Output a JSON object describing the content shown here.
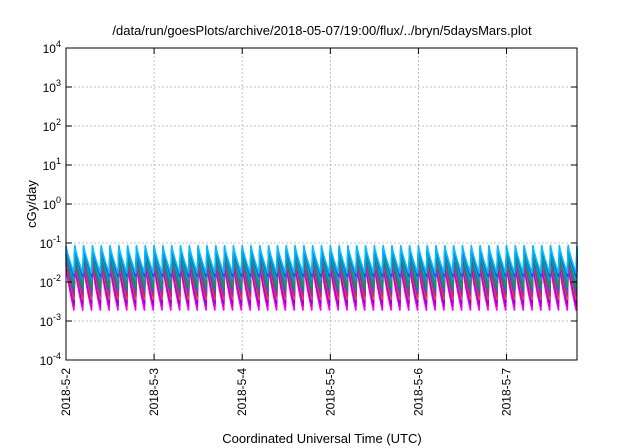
{
  "chart_data": {
    "type": "line",
    "title": "/data/run/goesPlots/archive/2018-05-07/19:00/flux/../bryn/5daysMars.plot",
    "xlabel": "Coordinated Universal Time (UTC)",
    "ylabel": "cGy/day",
    "yscale": "log",
    "ylim": [
      0.0001,
      10000
    ],
    "xlim": [
      0,
      5.8
    ],
    "grid": true,
    "legend": "none",
    "x_ticks": [
      {
        "value": 0,
        "label": "2018-5-2"
      },
      {
        "value": 1,
        "label": "2018-5-3"
      },
      {
        "value": 2,
        "label": "2018-5-4"
      },
      {
        "value": 3,
        "label": "2018-5-5"
      },
      {
        "value": 4,
        "label": "2018-5-6"
      },
      {
        "value": 5,
        "label": "2018-5-7"
      }
    ],
    "y_ticks": [
      {
        "value": 0.0001,
        "base": "10",
        "exp": "-4"
      },
      {
        "value": 0.001,
        "base": "10",
        "exp": "-3"
      },
      {
        "value": 0.01,
        "base": "10",
        "exp": "-2"
      },
      {
        "value": 0.1,
        "base": "10",
        "exp": "-1"
      },
      {
        "value": 1,
        "base": "10",
        "exp": "0"
      },
      {
        "value": 10,
        "base": "10",
        "exp": "1"
      },
      {
        "value": 100,
        "base": "10",
        "exp": "2"
      },
      {
        "value": 1000,
        "base": "10",
        "exp": "3"
      },
      {
        "value": 10000,
        "base": "10",
        "exp": "4"
      }
    ],
    "cycle_period_days": 0.1,
    "series": [
      {
        "color": "#ff00ff",
        "peak": 0.028,
        "trough": 0.0019
      },
      {
        "color": "#cc00cc",
        "peak": 0.033,
        "trough": 0.0024
      },
      {
        "color": "#9400d3",
        "peak": 0.038,
        "trough": 0.0029
      },
      {
        "color": "#e05060",
        "peak": 0.042,
        "trough": 0.0036
      },
      {
        "color": "#cc3030",
        "peak": 0.048,
        "trough": 0.0044
      },
      {
        "color": "#8a2be2",
        "peak": 0.052,
        "trough": 0.0052
      },
      {
        "color": "#008b8b",
        "peak": 0.058,
        "trough": 0.0065
      },
      {
        "color": "#00a060",
        "peak": 0.063,
        "trough": 0.0078
      },
      {
        "color": "#2e8b57",
        "peak": 0.068,
        "trough": 0.0095
      },
      {
        "color": "#1e90ff",
        "peak": 0.074,
        "trough": 0.0115
      },
      {
        "color": "#0066cc",
        "peak": 0.08,
        "trough": 0.014
      },
      {
        "color": "#00bfff",
        "peak": 0.086,
        "trough": 0.017
      }
    ]
  }
}
